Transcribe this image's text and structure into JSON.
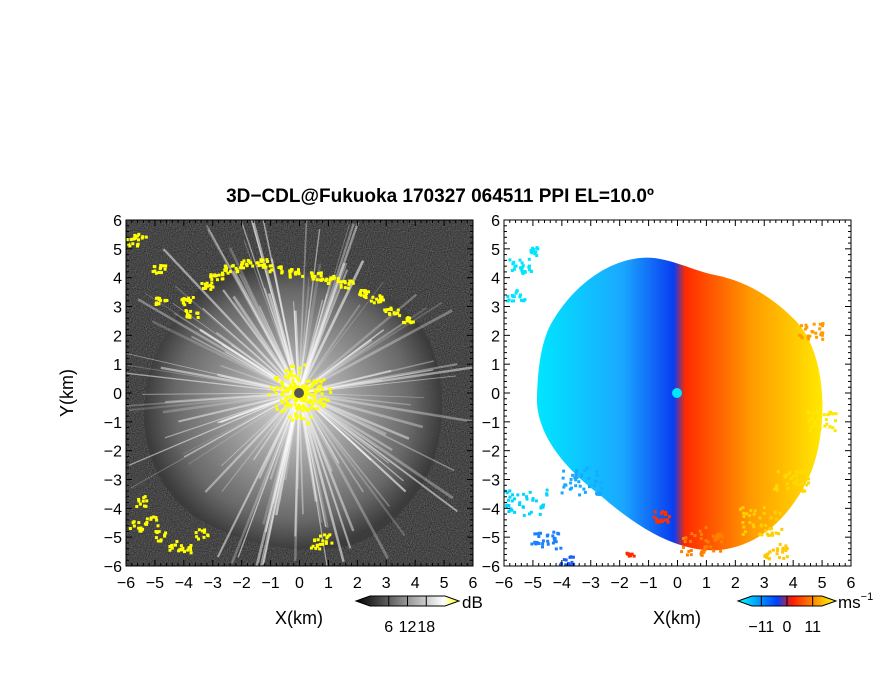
{
  "chart_data": [
    {
      "type": "heatmap",
      "title": "3D−CDL@Fukuoka 170327 064511 PPI EL=10.0º",
      "panel": "reflectivity",
      "xlabel": "X(km)",
      "ylabel": "Y(km)",
      "xlim": [
        -6,
        6
      ],
      "ylim": [
        -6,
        6
      ],
      "x_ticks": [
        "−6",
        "−5",
        "−4",
        "−3",
        "−2",
        "−1",
        "0",
        "1",
        "2",
        "3",
        "4",
        "5",
        "6"
      ],
      "y_ticks": [
        "6",
        "5",
        "4",
        "3",
        "2",
        "1",
        "0",
        "−1",
        "−2",
        "−3",
        "−4",
        "−5",
        "−6"
      ],
      "colorbar": {
        "unit": "dB",
        "ticks": [
          "6",
          "12",
          "18"
        ],
        "range": [
          0,
          24
        ],
        "colors": [
          "#000000",
          "#ffffff",
          "#ffff00"
        ]
      },
      "radar_site": {
        "x": 0,
        "y": 0
      },
      "echo_max_range_km": 4.8
    },
    {
      "type": "heatmap",
      "panel": "doppler-velocity",
      "xlabel": "X(km)",
      "xlim": [
        -6,
        6
      ],
      "ylim": [
        -6,
        6
      ],
      "x_ticks": [
        "−6",
        "−5",
        "−4",
        "−3",
        "−2",
        "−1",
        "0",
        "1",
        "2",
        "3",
        "4",
        "5",
        "6"
      ],
      "y_ticks": [
        "6",
        "5",
        "4",
        "3",
        "2",
        "1",
        "0",
        "−1",
        "−2",
        "−3",
        "−4",
        "−5",
        "−6"
      ],
      "colorbar": {
        "unit": "ms",
        "unit_exp": "−1",
        "ticks": [
          "−11",
          "0",
          "11"
        ],
        "range": [
          -15,
          15
        ],
        "colors": [
          "#00ffff",
          "#0000ff",
          "#ff0000",
          "#ffff00"
        ]
      },
      "radar_site": {
        "x": 0,
        "y": 0
      }
    }
  ]
}
